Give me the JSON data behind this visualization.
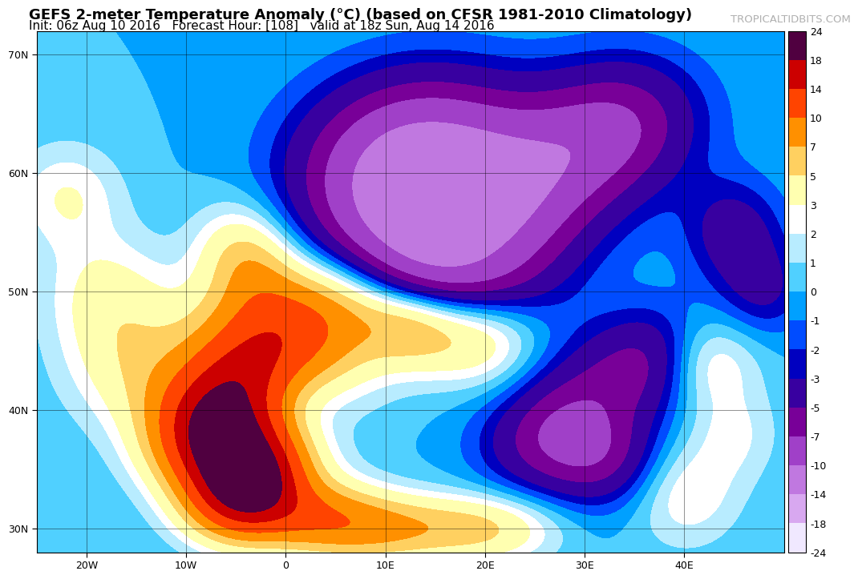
{
  "title": "GEFS 2-meter Temperature Anomaly (°C) (based on CFSR 1981-2010 Climatology)",
  "subtitle": "Init: 06z Aug 10 2016   Forecast Hour: [108]   valid at 18z Sun, Aug 14 2016",
  "watermark": "TROPICALTIDBITS.COM",
  "lon_min": -25,
  "lon_max": 50,
  "lat_min": 28,
  "lat_max": 72,
  "colorbar_levels": [
    -24,
    -18,
    -14,
    -10,
    -7,
    -5,
    -3,
    -2,
    -1,
    0,
    1,
    2,
    3,
    5,
    7,
    10,
    14,
    18,
    24
  ],
  "colorbar_colors": [
    "#f0e8ff",
    "#d8a8f0",
    "#c078e0",
    "#a040c8",
    "#780098",
    "#3800a0",
    "#0000c0",
    "#004cff",
    "#00a0ff",
    "#50d0ff",
    "#b8ecff",
    "#ffffff",
    "#ffffb0",
    "#ffd060",
    "#ff9000",
    "#ff4400",
    "#cc0000",
    "#880000",
    "#500040"
  ],
  "ocean_color": "#b8d8f0",
  "background_color": "white",
  "title_fontsize": 13,
  "subtitle_fontsize": 11,
  "watermark_color": "#b0b0b0",
  "grid_lons": [
    -20,
    -10,
    0,
    10,
    20,
    30,
    40
  ],
  "grid_lats": [
    30,
    40,
    50,
    60,
    70
  ]
}
